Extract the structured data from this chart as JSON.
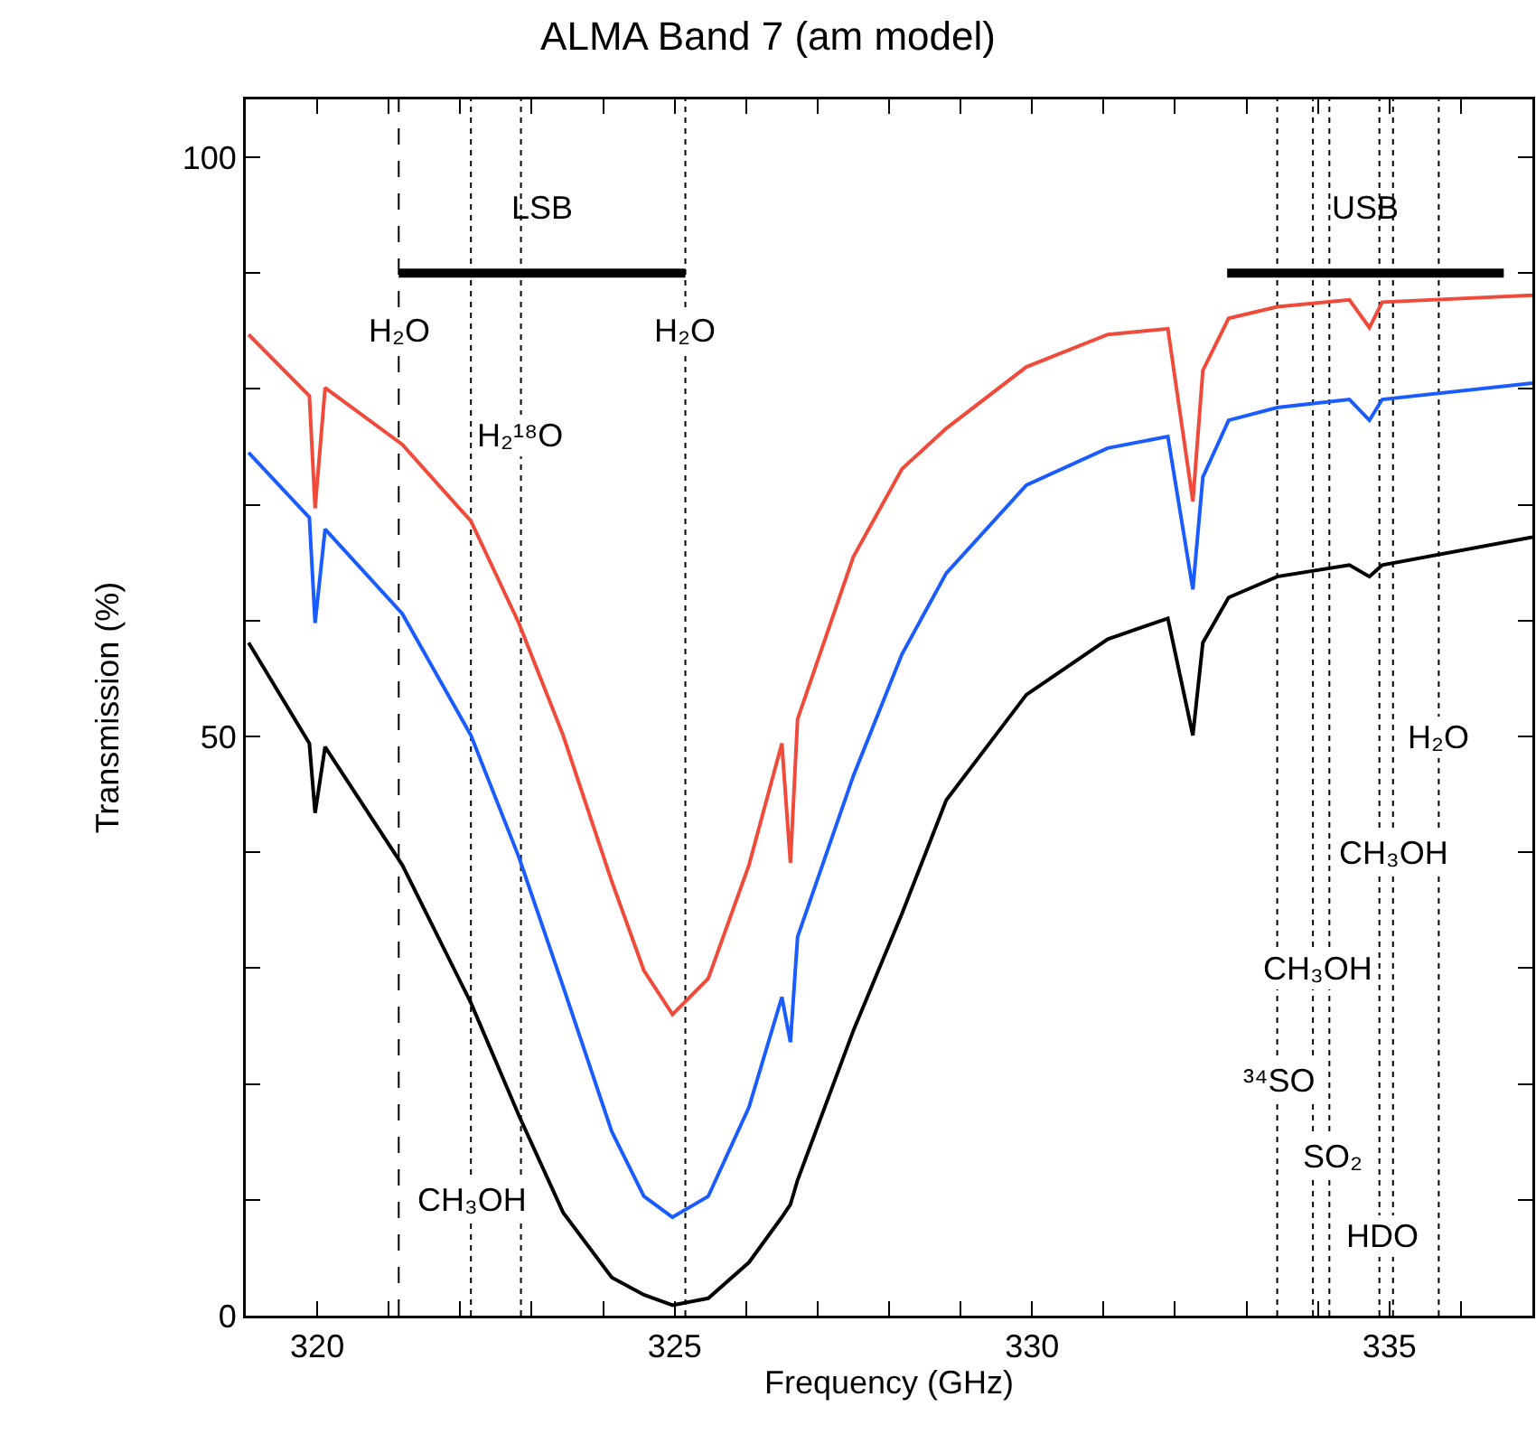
{
  "chart_data": {
    "type": "line",
    "title": "ALMA Band 7 (am model)",
    "xlabel": "Frequency (GHz)",
    "ylabel": "Transmission (%)",
    "xlim": [
      319,
      337
    ],
    "ylim": [
      0,
      105
    ],
    "xticks": [
      {
        "value": 319,
        "label": null
      },
      320,
      {
        "value": 321,
        "label": null
      },
      {
        "value": 322,
        "label": null
      },
      {
        "value": 323,
        "label": null
      },
      {
        "value": 324,
        "label": null
      },
      325,
      {
        "value": 326,
        "label": null
      },
      {
        "value": 327,
        "label": null
      },
      {
        "value": 328,
        "label": null
      },
      {
        "value": 329,
        "label": null
      },
      330,
      {
        "value": 331,
        "label": null
      },
      {
        "value": 332,
        "label": null
      },
      {
        "value": 333,
        "label": null
      },
      {
        "value": 334,
        "label": null
      },
      335,
      {
        "value": 336,
        "label": null
      }
    ],
    "yticks": [
      0,
      {
        "value": 10,
        "label": null
      },
      {
        "value": 20,
        "label": null
      },
      {
        "value": 30,
        "label": null
      },
      {
        "value": 40,
        "label": null
      },
      50,
      {
        "value": 60,
        "label": null
      },
      {
        "value": 70,
        "label": null
      },
      {
        "value": 80,
        "label": null
      },
      {
        "value": 90,
        "label": null
      },
      100
    ],
    "grid": false,
    "marker": "none",
    "line_style": "solid",
    "x": [
      319.04,
      319.89,
      319.97,
      320.11,
      321.19,
      322.15,
      322.82,
      323.44,
      324.12,
      324.57,
      324.97,
      325.47,
      326.04,
      326.5,
      326.62,
      326.72,
      327.5,
      328.18,
      328.8,
      329.92,
      331.06,
      331.9,
      332.25,
      332.39,
      332.75,
      333.43,
      334.44,
      334.72,
      334.9,
      337.0
    ],
    "series": [
      {
        "color": "#f04a3a",
        "values": [
          84.7,
          79.4,
          69.7,
          80.1,
          75.2,
          68.6,
          59.8,
          50.1,
          37.5,
          29.8,
          26.0,
          29.1,
          38.9,
          49.4,
          39.1,
          51.5,
          65.5,
          73.1,
          76.6,
          81.9,
          84.7,
          85.2,
          70.3,
          81.6,
          86.1,
          87.1,
          87.7,
          85.3,
          87.5,
          88.1
        ]
      },
      {
        "color": "#1a5cff",
        "values": [
          74.5,
          68.9,
          59.8,
          67.9,
          60.6,
          50.1,
          39.6,
          28.4,
          15.9,
          10.3,
          8.5,
          10.3,
          18.0,
          27.5,
          23.6,
          32.7,
          46.6,
          57.1,
          64.1,
          71.7,
          74.9,
          75.9,
          62.7,
          72.4,
          77.3,
          78.4,
          79.1,
          77.3,
          79.1,
          80.5
        ]
      },
      {
        "color": "#000000",
        "values": [
          58.1,
          49.4,
          43.4,
          49.1,
          38.9,
          27.0,
          17.3,
          8.9,
          3.3,
          1.8,
          0.9,
          1.5,
          4.6,
          8.5,
          9.6,
          11.7,
          24.6,
          34.7,
          44.5,
          53.6,
          58.4,
          60.2,
          50.1,
          58.1,
          62.0,
          63.8,
          64.8,
          63.8,
          64.8,
          67.2
        ]
      },
      {
        "color": "#000000",
        "x": [
          321.14,
          325.15
        ],
        "values": [
          90,
          90
        ]
      },
      {
        "color": "#000000",
        "x": [
          332.73,
          336.6
        ],
        "values": [
          90,
          90
        ]
      }
    ],
    "ref_lines": [
      {
        "axis": "x",
        "value": 321.14,
        "line_style": "dashed",
        "color": "#000000"
      },
      {
        "axis": "x",
        "value": 322.15,
        "line_style": "dotted",
        "color": "#000000"
      },
      {
        "axis": "x",
        "value": 322.85,
        "line_style": "dotted",
        "color": "#000000"
      },
      {
        "axis": "x",
        "value": 325.15,
        "line_style": "dotted",
        "color": "#000000"
      },
      {
        "axis": "x",
        "value": 333.43,
        "line_style": "dotted",
        "color": "#000000"
      },
      {
        "axis": "x",
        "value": 333.93,
        "line_style": "dotted",
        "color": "#000000"
      },
      {
        "axis": "x",
        "value": 334.16,
        "line_style": "dotted",
        "color": "#000000"
      },
      {
        "axis": "x",
        "value": 334.86,
        "line_style": "dotted",
        "color": "#000000"
      },
      {
        "axis": "x",
        "value": 335.05,
        "line_style": "dotted",
        "color": "#000000"
      },
      {
        "axis": "x",
        "value": 335.69,
        "line_style": "dotted",
        "color": "#000000"
      }
    ],
    "annotations": [
      {
        "text": "LSB",
        "x": 323.15,
        "y": 90
      },
      {
        "text": "USB",
        "x": 334.66,
        "y": 90
      },
      {
        "text": "H₂O",
        "x": 321.14,
        "y": 85
      },
      {
        "text": "H₂O",
        "x": 325.15,
        "y": 85
      },
      {
        "text": "H₂¹⁸O",
        "x": 322.85,
        "y": 76
      },
      {
        "text": "CH₃OH",
        "x": 322.15,
        "y": 10
      },
      {
        "text": "H₂O",
        "x": 335.69,
        "y": 50
      },
      {
        "text": "CH₃OH",
        "x": 335.05,
        "y": 40
      },
      {
        "text": "CH₃OH",
        "x": 334.0,
        "y": 30
      },
      {
        "text": "³⁴SO",
        "x": 333.45,
        "y": 20.3
      },
      {
        "text": "SO₂",
        "x": 334.2,
        "y": 13.8
      },
      {
        "text": "HDO",
        "x": 334.9,
        "y": 6.9
      }
    ]
  }
}
